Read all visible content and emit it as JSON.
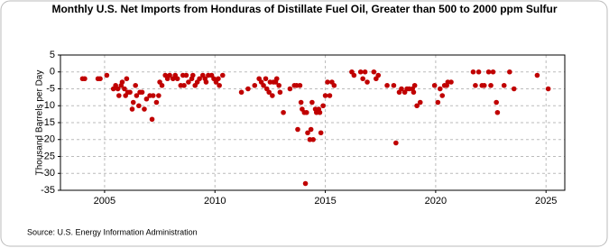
{
  "chart_data": {
    "type": "scatter",
    "title": "Monthly U.S. Net Imports from Honduras of Distillate Fuel Oil, Greater than 500 to 2000 ppm Sulfur",
    "y_label": "Thousand Barrels per Day",
    "source": "Source: U.S. Energy Information Administration",
    "xlim": [
      2003,
      2025.85
    ],
    "xticks": [
      2005,
      2010,
      2015,
      2020,
      2025
    ],
    "ylim": [
      -35,
      5
    ],
    "yticks": [
      5,
      0,
      -5,
      -10,
      -15,
      -20,
      -25,
      -30,
      -35
    ],
    "grid": true,
    "x": [
      2004.0,
      2004.1,
      2004.7,
      2004.8,
      2005.1,
      2005.4,
      2005.5,
      2005.6,
      2005.65,
      2005.75,
      2005.8,
      2005.9,
      2005.95,
      2006.0,
      2006.05,
      2006.15,
      2006.25,
      2006.3,
      2006.4,
      2006.45,
      2006.55,
      2006.6,
      2006.7,
      2006.8,
      2006.9,
      2007.05,
      2007.15,
      2007.2,
      2007.35,
      2007.45,
      2007.5,
      2007.6,
      2007.75,
      2007.85,
      2007.95,
      2008.1,
      2008.2,
      2008.3,
      2008.45,
      2008.55,
      2008.6,
      2008.7,
      2008.8,
      2008.95,
      2009.0,
      2009.1,
      2009.2,
      2009.3,
      2009.45,
      2009.55,
      2009.6,
      2009.7,
      2009.85,
      2009.95,
      2010.05,
      2010.15,
      2010.2,
      2010.35,
      2011.2,
      2011.5,
      2011.8,
      2012.0,
      2012.1,
      2012.2,
      2012.3,
      2012.35,
      2012.45,
      2012.5,
      2012.6,
      2012.65,
      2012.75,
      2012.8,
      2012.9,
      2012.95,
      2013.1,
      2013.4,
      2013.6,
      2013.7,
      2013.75,
      2013.85,
      2013.9,
      2013.95,
      2014.05,
      2014.1,
      2014.15,
      2014.2,
      2014.3,
      2014.35,
      2014.4,
      2014.45,
      2014.55,
      2014.6,
      2014.7,
      2014.75,
      2014.8,
      2014.9,
      2015.0,
      2015.1,
      2015.2,
      2015.3,
      2015.4,
      2016.2,
      2016.3,
      2016.6,
      2016.7,
      2016.8,
      2016.9,
      2017.2,
      2017.3,
      2017.4,
      2017.8,
      2018.1,
      2018.2,
      2018.35,
      2018.45,
      2018.6,
      2018.7,
      2018.8,
      2018.95,
      2019.0,
      2019.05,
      2019.15,
      2019.3,
      2019.95,
      2020.1,
      2020.2,
      2020.3,
      2020.4,
      2020.5,
      2020.55,
      2020.7,
      2021.7,
      2021.8,
      2021.95,
      2022.1,
      2022.2,
      2022.4,
      2022.5,
      2022.6,
      2022.75,
      2022.8,
      2023.1,
      2023.35,
      2023.55,
      2024.6,
      2025.1
    ],
    "series": [
      {
        "color": "#c00000",
        "values": [
          -2,
          -2,
          -2,
          -2,
          -1,
          -5,
          -4,
          -5,
          -7,
          -4,
          -3,
          -5,
          -7,
          -2,
          -6,
          -6,
          -11,
          -9,
          -4,
          -7,
          -10,
          -6,
          -6,
          -11,
          -8,
          -7,
          -14,
          -7,
          -9,
          -7,
          -3,
          -4,
          -1,
          -2,
          -1,
          -2,
          -1,
          -2,
          -4,
          -1,
          -4,
          -1,
          -3,
          -2,
          -1,
          -4,
          -3,
          -2,
          -1,
          -2,
          -3,
          -1,
          -1,
          -2,
          -3,
          -2,
          -4,
          -1,
          -6,
          -5,
          -4,
          -2,
          -3,
          -4,
          -2,
          -5,
          -6,
          -3,
          -7,
          -3,
          -3,
          -2,
          -4,
          -6,
          -12,
          -5,
          -4,
          -4,
          -17,
          -4,
          -9,
          -11,
          -12,
          -33,
          -12,
          -18,
          -20,
          -17,
          -9,
          -20,
          -11,
          -12,
          -11,
          -12,
          -18,
          -10,
          -7,
          -3,
          -7,
          -3,
          -4,
          0,
          -1,
          0,
          -2,
          0,
          -3,
          0,
          -2,
          -1,
          -4,
          -4,
          -21,
          -6,
          -5,
          -6,
          -5,
          -5,
          -5,
          -6,
          -4,
          -10,
          -9,
          -4,
          -9,
          -5,
          -7,
          -4,
          -4,
          -3,
          -3,
          0,
          -4,
          0,
          -4,
          -4,
          0,
          -4,
          0,
          -9,
          -12,
          -4,
          0,
          -5,
          -1,
          -5
        ]
      }
    ]
  }
}
